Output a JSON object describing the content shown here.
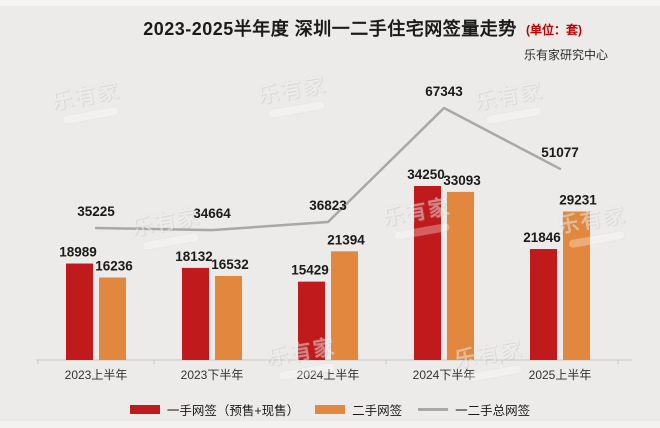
{
  "header": {
    "title": "2023-2025半年度 深圳一二手住宅网签量走势",
    "unit_note": "(单位：套)",
    "source": "乐有家研究中心"
  },
  "watermark": {
    "text": "乐有家"
  },
  "colors": {
    "background": "#ecebe9",
    "new_home_red": "#c11a1d",
    "resale_orange": "#e2883e",
    "total_line_gray": "#a9a8a6",
    "unit_note_red": "#c00000",
    "axis_gray": "#c9c8c6"
  },
  "chart_data": {
    "type": "bar",
    "title": "2023-2025半年度 深圳一二手住宅网签量走势",
    "unit": "套",
    "categories": [
      "2023上半年",
      "2023下半年",
      "2024上半年",
      "2024下半年",
      "2025上半年"
    ],
    "series": [
      {
        "name": "一手网签（预售+现售）",
        "type": "bar",
        "color": "#c11a1d",
        "values": [
          18989,
          18132,
          15429,
          34250,
          21846
        ]
      },
      {
        "name": "二手网签",
        "type": "bar",
        "color": "#e2883e",
        "values": [
          16236,
          16532,
          21394,
          33093,
          29231
        ]
      },
      {
        "name": "一二手总网签",
        "type": "line",
        "color": "#a9a8a6",
        "values": [
          35225,
          34664,
          36823,
          67343,
          51077
        ]
      }
    ],
    "ylabel": "",
    "xlabel": "",
    "grid": false,
    "y_axis_shown": false,
    "legend_position": "bottom"
  },
  "legend": {
    "items": [
      {
        "label": "一手网签（预售+现售）",
        "color": "#c11a1d",
        "shape": "bar"
      },
      {
        "label": "二手网签",
        "color": "#e2883e",
        "shape": "bar"
      },
      {
        "label": "一二手总网签",
        "color": "#a9a8a6",
        "shape": "line"
      }
    ]
  }
}
